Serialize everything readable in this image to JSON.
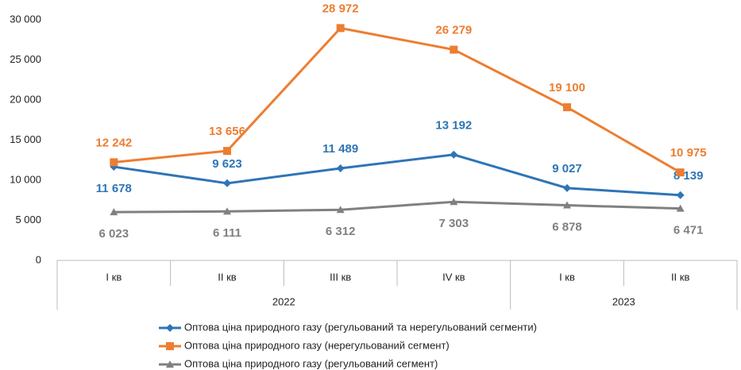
{
  "chart_data": {
    "type": "line",
    "categories": [
      "I кв",
      "II кв",
      "III кв",
      "IV кв",
      "I кв",
      "II кв"
    ],
    "years": [
      "2022",
      "2022",
      "2022",
      "2022",
      "2023",
      "2023"
    ],
    "series": [
      {
        "name": "Оптова ціна природного газу (регульований та нерегульований сегменти)",
        "color": "#2e75b6",
        "marker": "diamond",
        "values": [
          11678,
          9623,
          11489,
          13192,
          9027,
          8139
        ],
        "value_labels": [
          "11 678",
          "9 623",
          "11 489",
          "13 192",
          "9 027",
          "8 139"
        ]
      },
      {
        "name": "Оптова ціна природного газу (нерегульований сегмент)",
        "color": "#ed7d31",
        "marker": "square",
        "values": [
          12242,
          13656,
          28972,
          26279,
          19100,
          10975
        ],
        "value_labels": [
          "12 242",
          "13 656",
          "28 972",
          "26 279",
          "19 100",
          "10 975"
        ]
      },
      {
        "name": "Оптова ціна природного газу (регульований сегмент)",
        "color": "#808080",
        "marker": "triangle",
        "values": [
          6023,
          6111,
          6312,
          7303,
          6878,
          6471
        ],
        "value_labels": [
          "6 023",
          "6 111",
          "6 312",
          "7 303",
          "6 878",
          "6 471"
        ]
      }
    ],
    "ylim": [
      0,
      30000
    ],
    "yticks": [
      0,
      {
        "value": 5000,
        "label": "5 000"
      },
      {
        "value": 10000,
        "label": "10 000"
      },
      {
        "value": 15000,
        "label": "15 000"
      },
      {
        "value": 20000,
        "label": "20 000"
      },
      {
        "value": 25000,
        "label": "25 000"
      },
      {
        "value": 30000,
        "label": "30 000"
      }
    ],
    "grid": false,
    "legend": "bottom"
  }
}
